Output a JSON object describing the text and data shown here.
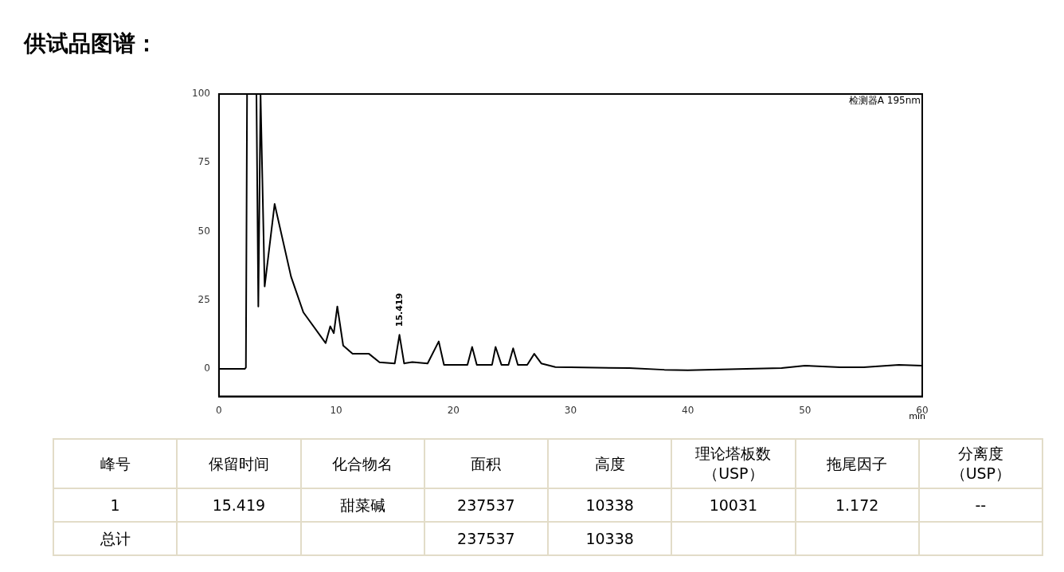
{
  "chart_data": {
    "type": "line",
    "title": "供试品图谱：",
    "xlabel": "min",
    "x": [
      0,
      2.2,
      2.3,
      2.4,
      3.2,
      3.36,
      3.55,
      3.9,
      4.75,
      6.15,
      7.2,
      9.1,
      9.5,
      9.8,
      10.1,
      10.6,
      11.4,
      12.8,
      13.7,
      15.0,
      15.4,
      15.8,
      16.5,
      17.8,
      18.75,
      19.2,
      21.2,
      21.6,
      22.0,
      23.3,
      23.6,
      24.1,
      24.7,
      25.1,
      25.5,
      26.3,
      26.9,
      27.5,
      28.7,
      30,
      35,
      38,
      40,
      45,
      48,
      50,
      53,
      55,
      58,
      60
    ],
    "series": [
      {
        "color": "#000000",
        "values": [
          0,
          0,
          0.5,
          100,
          100,
          22.7,
          100,
          30,
          60,
          33.6,
          20.6,
          9.4,
          15.5,
          13,
          22.7,
          8.5,
          5.5,
          5.5,
          2.4,
          2,
          12.4,
          2,
          2.5,
          2,
          10,
          1.5,
          1.5,
          8,
          1.5,
          1.5,
          8,
          1.5,
          1.5,
          7.5,
          1.5,
          1.5,
          5.5,
          2,
          0.7,
          0.6,
          0.3,
          -0.3,
          -0.5,
          0,
          0.3,
          1.2,
          0.6,
          0.6,
          1.5,
          1.2
        ]
      }
    ],
    "xlim": [
      0,
      60
    ],
    "xticks": [
      0,
      10,
      20,
      30,
      40,
      50,
      60
    ],
    "ylim": [
      -10,
      100
    ],
    "yticks": [
      0,
      25,
      50,
      75,
      100
    ],
    "grid": false,
    "legend": false,
    "marker": "none",
    "line_style": "solid",
    "annotations": [
      {
        "text": "15.419",
        "x": 15.419,
        "y": 13
      },
      "检测器A 195nm",
      "峰号",
      "保留时间",
      "化合物名",
      "面积",
      "高度",
      "理论塔板数（USP）",
      "拖尾因子",
      "分离度（USP）",
      "1",
      "15.419",
      "甜菜碱",
      "237537",
      "10338",
      "10031",
      "1.172",
      "--",
      "总计",
      null,
      null,
      "237537",
      "10338",
      null,
      null,
      null
    ]
  }
}
